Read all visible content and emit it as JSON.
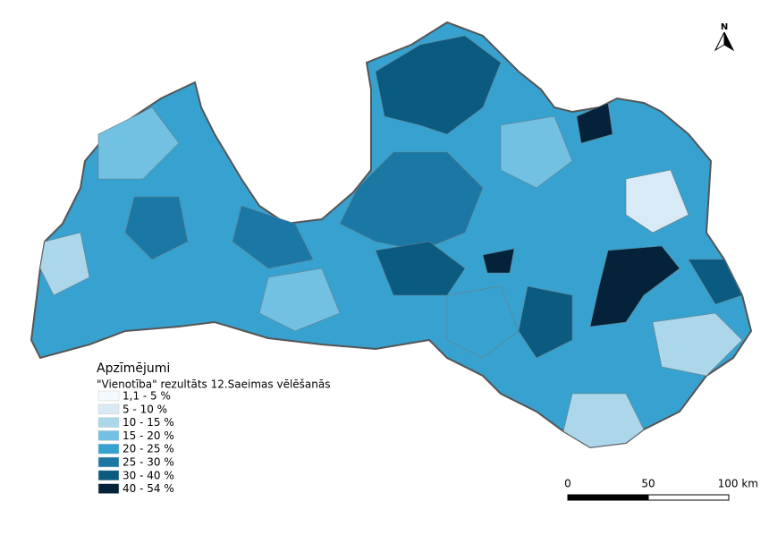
{
  "legend": {
    "title": "Apzīmējumi",
    "subtitle": "\"Vienotība\" rezultāts 12.Saeimas vēlēšanās",
    "classes": [
      {
        "label": "1,1 - 5 %",
        "color": "#f4f9fd"
      },
      {
        "label": "5 - 10 %",
        "color": "#d8eaf5"
      },
      {
        "label": "10 - 15 %",
        "color": "#acd6ea"
      },
      {
        "label": "15 - 20 %",
        "color": "#72c0e2"
      },
      {
        "label": "20 - 25 %",
        "color": "#37a2cf"
      },
      {
        "label": "25 - 30 %",
        "color": "#1b78a4"
      },
      {
        "label": "30 - 40 %",
        "color": "#0b5a80"
      },
      {
        "label": "40 - 54 %",
        "color": "#04233a"
      }
    ]
  },
  "scale_bar": {
    "labels": [
      "0",
      "50",
      "100 km"
    ]
  },
  "north_arrow": {
    "label": "N"
  }
}
